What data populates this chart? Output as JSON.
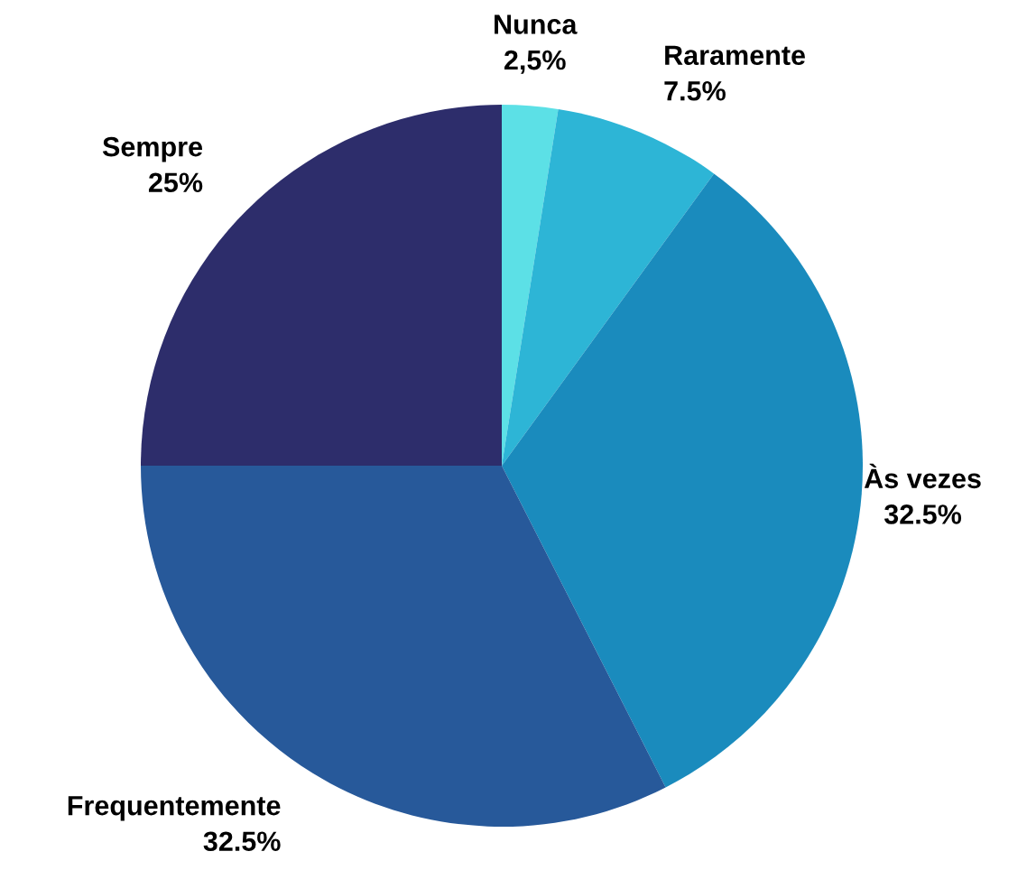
{
  "chart_data": {
    "type": "pie",
    "categories": [
      "Nunca",
      "Raramente",
      "Às vezes",
      "Frequentemente",
      "Sempre"
    ],
    "values": [
      2.5,
      7.5,
      32.5,
      32.5,
      25
    ],
    "value_labels": [
      "2,5%",
      "7.5%",
      "32.5%",
      "32.5%",
      "25%"
    ],
    "colors": [
      "#5ce0e6",
      "#2db5d6",
      "#1a8bbd",
      "#27599a",
      "#2d2d6b"
    ],
    "legend": false
  }
}
